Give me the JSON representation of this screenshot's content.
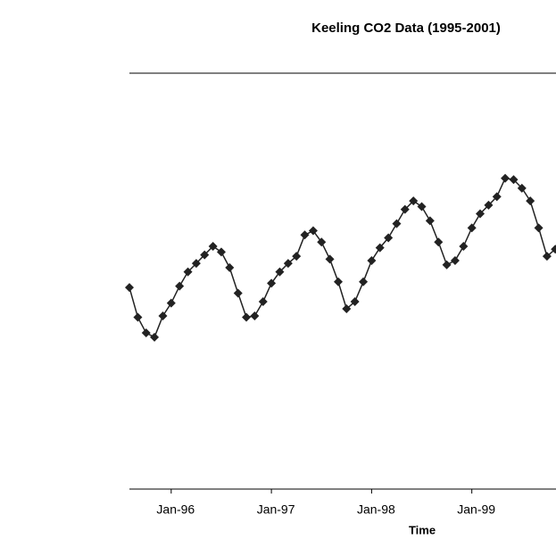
{
  "chart_data": {
    "type": "line",
    "title": "Keeling CO2 Data (1995-2001)",
    "x_label": "Time",
    "x": [
      1995.583,
      1995.667,
      1995.75,
      1995.833,
      1995.917,
      1996.0,
      1996.083,
      1996.167,
      1996.25,
      1996.333,
      1996.417,
      1996.5,
      1996.583,
      1996.667,
      1996.75,
      1996.833,
      1996.917,
      1997.0,
      1997.083,
      1997.167,
      1997.25,
      1997.333,
      1997.417,
      1997.5,
      1997.583,
      1997.667,
      1997.75,
      1997.833,
      1997.917,
      1998.0,
      1998.083,
      1998.167,
      1998.25,
      1998.333,
      1998.417,
      1998.5,
      1998.583,
      1998.667,
      1998.75,
      1998.833,
      1998.917,
      1999.0,
      1999.083,
      1999.167,
      1999.25,
      1999.333,
      1999.417,
      1999.5,
      1999.583,
      1999.667,
      1999.75,
      1999.833
    ],
    "series": [
      {
        "color": "#222222",
        "values": [
          362.2,
          360.1,
          359.0,
          358.7,
          360.2,
          361.1,
          362.3,
          363.3,
          363.9,
          364.5,
          365.1,
          364.7,
          363.6,
          361.8,
          360.1,
          360.2,
          361.2,
          362.5,
          363.3,
          363.9,
          364.4,
          365.9,
          366.2,
          365.4,
          364.2,
          362.6,
          360.7,
          361.2,
          362.6,
          364.1,
          365.0,
          365.7,
          366.7,
          367.7,
          368.3,
          367.9,
          366.9,
          365.4,
          363.8,
          364.1,
          365.1,
          366.4,
          367.4,
          368.0,
          368.6,
          369.9,
          369.8,
          369.2,
          368.3,
          366.4,
          364.4,
          364.9
        ]
      }
    ],
    "xlim": [
      1995.583,
      1999.84
    ],
    "ylim": [
      348,
      377.3
    ],
    "xticks": [
      {
        "value": 1996,
        "label": "Jan-96"
      },
      {
        "value": 1997,
        "label": "Jan-97"
      },
      {
        "value": 1998,
        "label": "Jan-98"
      },
      {
        "value": 1999,
        "label": "Jan-99"
      }
    ]
  }
}
